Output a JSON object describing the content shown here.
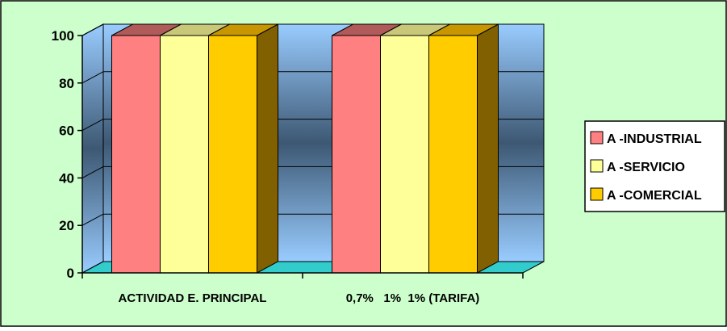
{
  "chart_data": {
    "type": "bar",
    "categories": [
      "ACTIVIDAD E. PRINCIPAL",
      "0,7%   1%  1% (TARIFA)"
    ],
    "series": [
      {
        "name": "A -INDUSTRIAL",
        "values": [
          100,
          100
        ]
      },
      {
        "name": "A -SERVICIO",
        "values": [
          100,
          100
        ]
      },
      {
        "name": "A -COMERCIAL",
        "values": [
          100,
          100
        ]
      }
    ],
    "y_ticks": [
      "0",
      "20",
      "40",
      "60",
      "80",
      "100"
    ],
    "ylim": [
      0,
      100
    ],
    "grid": true,
    "legend_position": "right",
    "three_d": true,
    "colors": {
      "background": "#ccffcc",
      "wall_light": "#99ccff",
      "wall_dark": "#3d5873",
      "floor": "#33cccc",
      "series": [
        "#ff8080",
        "#ffff99",
        "#ffcc00"
      ],
      "series_top": [
        "#b05a5a",
        "#c8c878",
        "#c89600"
      ],
      "series_side": [
        "#7a3c3c",
        "#8a8a50",
        "#806000"
      ]
    }
  }
}
